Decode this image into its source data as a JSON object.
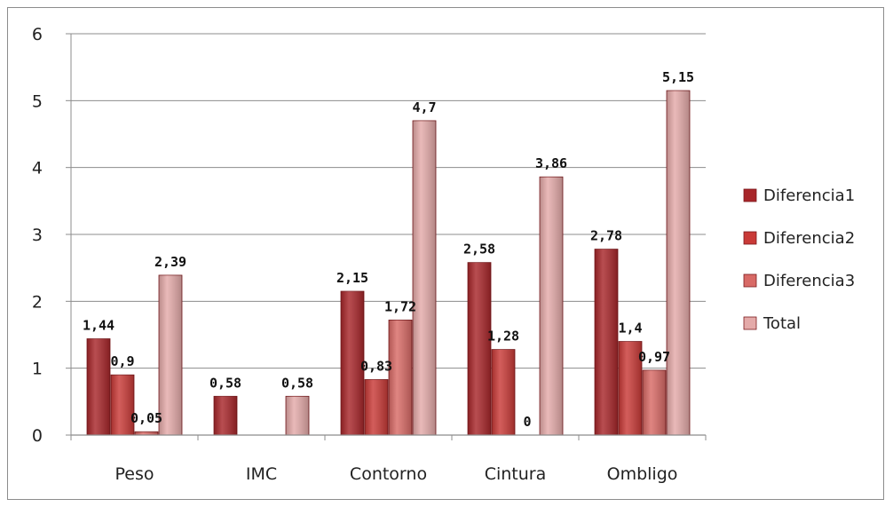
{
  "chart_data": {
    "type": "bar",
    "categories": [
      "Peso",
      "IMC",
      "Contorno",
      "Cintura",
      "Ombligo"
    ],
    "series": [
      {
        "name": "Diferencia1",
        "color": "#a8262a",
        "values": [
          1.44,
          0.58,
          2.15,
          2.58,
          2.78
        ],
        "labels": [
          "1,44",
          "0,58",
          "2,15",
          "2,58",
          "2,78"
        ]
      },
      {
        "name": "Diferencia2",
        "color": "#c93a37",
        "values": [
          0.9,
          null,
          0.83,
          1.28,
          1.4
        ],
        "labels": [
          "0,9",
          "",
          "0,83",
          "1,28",
          "1,4"
        ]
      },
      {
        "name": "Diferencia3",
        "color": "#d86a66",
        "values": [
          0.05,
          null,
          1.72,
          0,
          0.97
        ],
        "labels": [
          "0,05",
          "",
          "1,72",
          "0",
          "0,97"
        ]
      },
      {
        "name": "Total",
        "color": "#e4aaa9",
        "values": [
          2.39,
          0.58,
          4.7,
          3.86,
          5.15
        ],
        "labels": [
          "2,39",
          "0,58",
          "4,7",
          "3,86",
          "5,15"
        ]
      }
    ],
    "yticks": [
      "0",
      "1",
      "2",
      "3",
      "4",
      "5",
      "6"
    ],
    "ylim": [
      0,
      6
    ],
    "grid": true,
    "legend": "right"
  }
}
